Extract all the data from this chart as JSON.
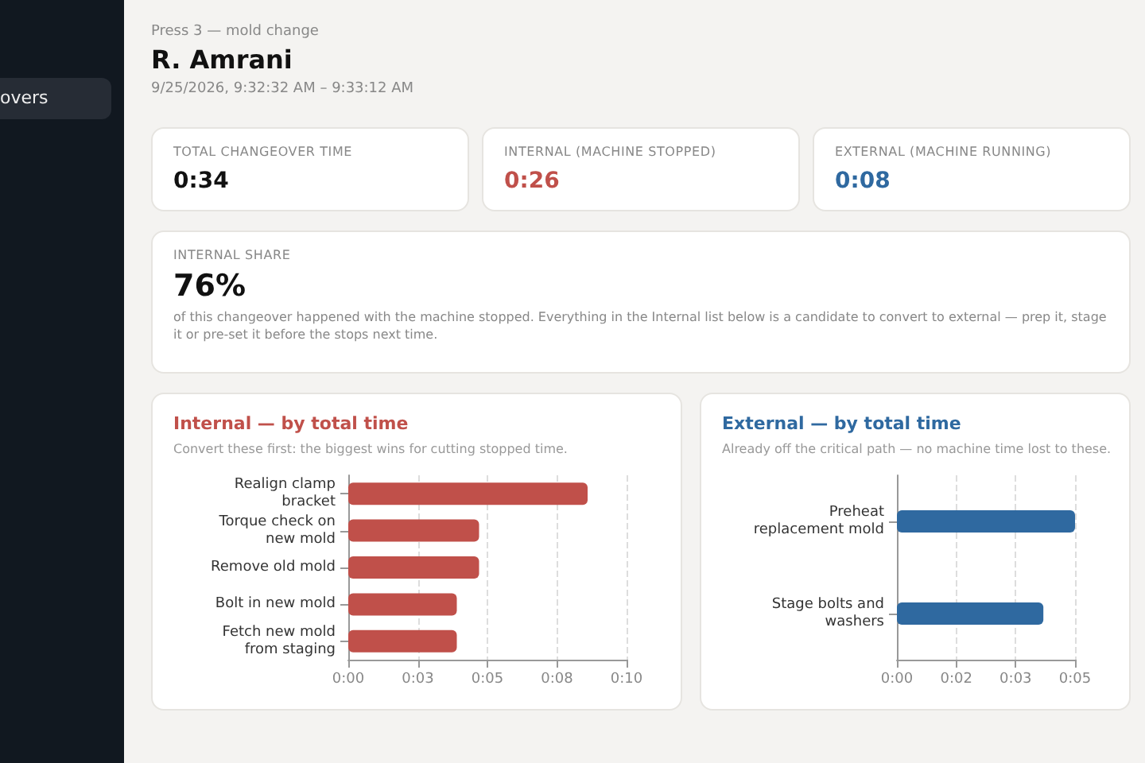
{
  "chart_data": [
    {
      "type": "other",
      "title": "R. Amrani",
      "subtitle": "Press 3 — mold change",
      "annotations": [
        "9/25/2026, 9:32:32 AM – 9:33:12 AM",
        "TOTAL CHANGEOVER TIME",
        "0:34",
        "INTERNAL (MACHINE STOPPED)",
        "0:26",
        "EXTERNAL (MACHINE RUNNING)",
        "0:08",
        "INTERNAL SHARE",
        "76%",
        "of this changeover happened with the machine stopped. Everything in the Internal list below is a candidate to convert to external — prep it, stage it or pre-set it before the stops next time.",
        "overs"
      ]
    },
    {
      "type": "bar",
      "orientation": "horizontal",
      "title": "Internal — by total time",
      "subtitle": "Convert these first: the biggest wins for cutting stopped time.",
      "categories": [
        "Realign clamp bracket",
        "Torque check on new mold",
        "Remove old mold",
        "Bolt in new mold",
        "Fetch new mold from staging"
      ],
      "values": [
        8.6,
        4.7,
        4.7,
        3.9,
        3.9
      ],
      "color": "#c0504a",
      "xlim": [
        0,
        10
      ],
      "xticks": [
        {
          "value": 0,
          "label": "0:00"
        },
        {
          "value": 2.5,
          "label": "0:03"
        },
        {
          "value": 5,
          "label": "0:05"
        },
        {
          "value": 7.5,
          "label": "0:08"
        },
        {
          "value": 10,
          "label": "0:10"
        }
      ],
      "grid": "x"
    },
    {
      "type": "bar",
      "orientation": "horizontal",
      "title": "External — by total time",
      "subtitle": "Already off the critical path — no machine time lost to these.",
      "categories": [
        "Preheat replacement mold",
        "Stage bolts and washers"
      ],
      "values": [
        4.5,
        3.7
      ],
      "color": "#2f69a0",
      "xlim": [
        0,
        4.5
      ],
      "xticks": [
        {
          "value": 0,
          "label": "0:00"
        },
        {
          "value": 1.5,
          "label": "0:02"
        },
        {
          "value": 3,
          "label": "0:03"
        },
        {
          "value": 4.5,
          "label": "0:05"
        }
      ],
      "grid": "x"
    }
  ]
}
